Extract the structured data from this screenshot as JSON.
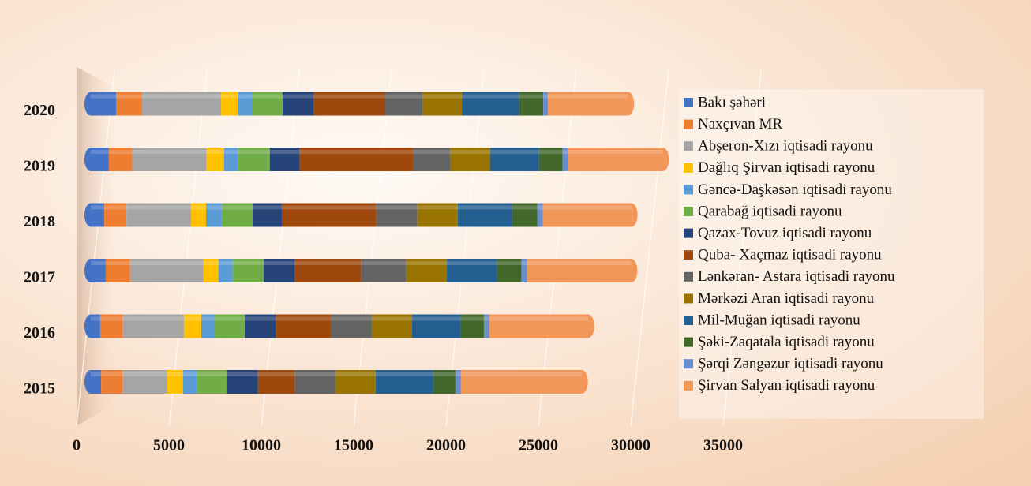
{
  "chart_data": {
    "type": "bar",
    "orientation": "horizontal",
    "stacked": true,
    "categories": [
      "2015",
      "2016",
      "2017",
      "2018",
      "2019",
      "2020"
    ],
    "xlim": [
      0,
      35000
    ],
    "xticks": [
      0,
      5000,
      10000,
      15000,
      20000,
      25000,
      30000,
      35000
    ],
    "grid": true,
    "legend": "right",
    "series": [
      {
        "name": "Bakı şəhəri",
        "color": "#4472c4",
        "values": [
          560,
          510,
          810,
          730,
          980,
          1370
        ]
      },
      {
        "name": "Naxçıvan MR",
        "color": "#ed7d31",
        "values": [
          1150,
          1200,
          1320,
          1200,
          1280,
          1410
        ]
      },
      {
        "name": "Abşeron-Xızı iqtisadi rayonu",
        "color": "#a5a5a5",
        "values": [
          2430,
          3330,
          3970,
          3500,
          4010,
          4270
        ]
      },
      {
        "name": "Dağlıq Şirvan iqtisadi rayonu",
        "color": "#ffc000",
        "values": [
          850,
          940,
          810,
          810,
          940,
          940
        ]
      },
      {
        "name": "Gəncə-Daşkəsən iqtisadi rayonu",
        "color": "#5b9bd5",
        "values": [
          770,
          730,
          770,
          850,
          770,
          770
        ]
      },
      {
        "name": "Qarabağ iqtisadi rayonu",
        "color": "#70ad47",
        "values": [
          1620,
          1620,
          1670,
          1670,
          1710,
          1620
        ]
      },
      {
        "name": "Qazax-Tovuz iqtisadi rayonu",
        "color": "#264478",
        "values": [
          1670,
          1670,
          1710,
          1580,
          1620,
          1670
        ]
      },
      {
        "name": "Quba- Xaçmaz iqtisadi rayonu",
        "color": "#9e480e",
        "values": [
          2010,
          2990,
          3590,
          5120,
          6150,
          3890
        ]
      },
      {
        "name": "Lənkəran- Astara iqtisadi rayonu",
        "color": "#636363",
        "values": [
          2180,
          2220,
          2430,
          2220,
          2010,
          2010
        ]
      },
      {
        "name": "Mərkəzi Aran iqtisadi rayonu",
        "color": "#997300",
        "values": [
          2180,
          2180,
          2180,
          2180,
          2140,
          2140
        ]
      },
      {
        "name": "Mil-Muğan iqtisadi rayonu",
        "color": "#255e91",
        "values": [
          3120,
          2650,
          2730,
          2950,
          2650,
          3080
        ]
      },
      {
        "name": "Şəki-Zaqatala iqtisadi rayonu",
        "color": "#43682b",
        "values": [
          1200,
          1240,
          1320,
          1370,
          1280,
          1320
        ]
      },
      {
        "name": "Şərqi Zəngəzur iqtisadi rayonu",
        "color": "#698ed0",
        "values": [
          300,
          300,
          300,
          300,
          300,
          260
        ]
      },
      {
        "name": "Şirvan Salyan iqtisadi rayonu",
        "color": "#f1975a",
        "values": [
          6530,
          5340,
          5640,
          4780,
          5120,
          4320
        ]
      }
    ]
  }
}
